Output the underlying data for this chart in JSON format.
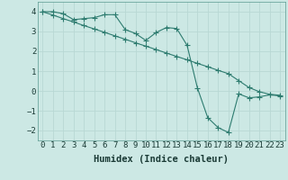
{
  "line1_x": [
    0,
    1,
    2,
    3,
    4,
    5,
    6,
    7,
    8,
    9,
    10,
    11,
    12,
    13,
    14,
    15,
    16,
    17,
    18,
    19,
    20,
    21,
    22,
    23
  ],
  "line1_y": [
    4.0,
    4.0,
    3.9,
    3.6,
    3.65,
    3.7,
    3.85,
    3.85,
    3.1,
    2.9,
    2.55,
    2.95,
    3.2,
    3.15,
    2.3,
    0.15,
    -1.35,
    -1.85,
    -2.1,
    -0.15,
    -0.35,
    -0.3,
    -0.2,
    -0.25
  ],
  "line2_x": [
    0,
    1,
    2,
    3,
    4,
    5,
    6,
    7,
    8,
    9,
    10,
    11,
    12,
    13,
    14,
    15,
    16,
    17,
    18,
    19,
    20,
    21,
    22,
    23
  ],
  "line2_y": [
    4.0,
    3.83,
    3.65,
    3.48,
    3.3,
    3.13,
    2.96,
    2.78,
    2.61,
    2.43,
    2.26,
    2.09,
    1.91,
    1.74,
    1.57,
    1.39,
    1.22,
    1.04,
    0.87,
    0.52,
    0.17,
    -0.04,
    -0.17,
    -0.22
  ],
  "line_color": "#2d7b6f",
  "marker1": "P",
  "marker2": "P",
  "marker_size": 2.5,
  "background_color": "#cce8e4",
  "grid_color": "#b8d8d4",
  "xlabel": "Humidex (Indice chaleur)",
  "xlim": [
    -0.5,
    23.5
  ],
  "ylim": [
    -2.5,
    4.5
  ],
  "yticks": [
    -2,
    -1,
    0,
    1,
    2,
    3,
    4
  ],
  "xticks": [
    0,
    1,
    2,
    3,
    4,
    5,
    6,
    7,
    8,
    9,
    10,
    11,
    12,
    13,
    14,
    15,
    16,
    17,
    18,
    19,
    20,
    21,
    22,
    23
  ],
  "xlabel_fontsize": 7.5,
  "tick_fontsize": 6.5
}
